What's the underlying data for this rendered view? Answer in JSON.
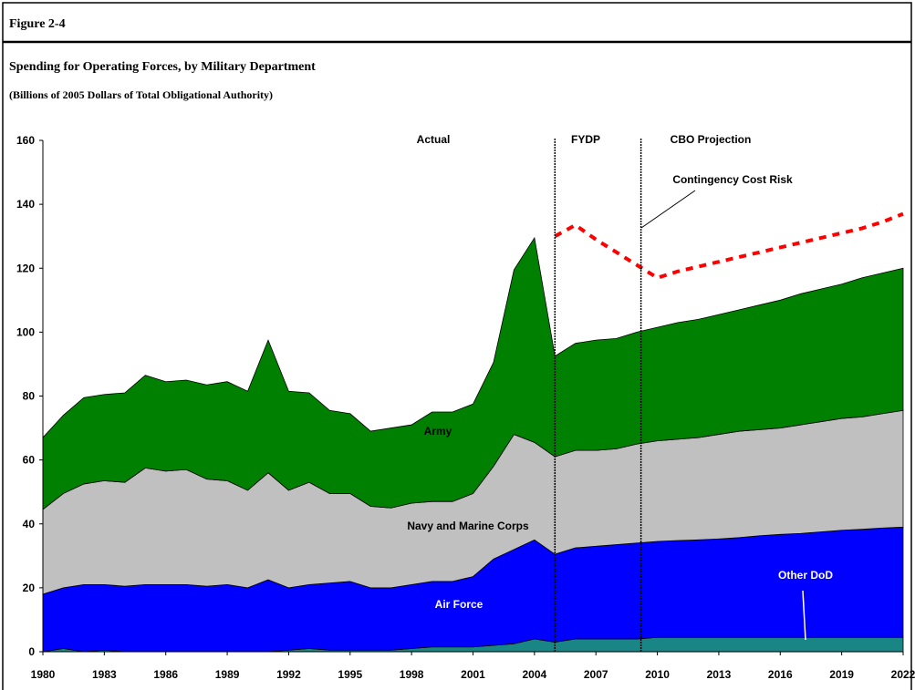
{
  "header": {
    "figure": "Figure 2-4"
  },
  "chart_data": {
    "type": "stacked_area",
    "title": "Spending for Operating Forces, by Military Department",
    "subtitle": "(Billions of 2005 Dollars of Total Obligational Authority)",
    "x": [
      1980,
      1981,
      1982,
      1983,
      1984,
      1985,
      1986,
      1987,
      1988,
      1989,
      1990,
      1991,
      1992,
      1993,
      1994,
      1995,
      1996,
      1997,
      1998,
      1999,
      2000,
      2001,
      2002,
      2003,
      2004,
      2005,
      2006,
      2007,
      2008,
      2009,
      2010,
      2011,
      2012,
      2013,
      2014,
      2015,
      2016,
      2017,
      2018,
      2019,
      2020,
      2021,
      2022
    ],
    "series": [
      {
        "name": "Other DoD",
        "color": "#1a8585",
        "label_color": "#ffffff",
        "values": [
          0,
          1,
          0,
          0.5,
          0,
          0,
          0,
          0,
          0,
          0,
          0,
          0,
          0.5,
          1,
          0.5,
          0.5,
          0.5,
          0.5,
          1,
          1.5,
          1.5,
          1.5,
          2,
          2.5,
          4,
          3,
          4,
          4,
          4,
          4,
          4.5,
          4.5,
          4.5,
          4.5,
          4.5,
          4.5,
          4.5,
          4.5,
          4.5,
          4.5,
          4.5,
          4.5,
          4.5
        ]
      },
      {
        "name": "Air Force",
        "color": "#0000ff",
        "label_color": "#ffffff",
        "values": [
          18,
          19,
          21,
          20.5,
          20.5,
          21,
          21,
          21,
          20.5,
          21,
          20,
          22.5,
          19.5,
          20,
          21,
          21.5,
          19.5,
          19.5,
          20,
          20.5,
          20.5,
          22,
          27,
          29.5,
          31,
          27.5,
          28.5,
          29,
          29.5,
          30,
          30,
          30.3,
          30.5,
          30.8,
          31.2,
          31.8,
          32.2,
          32.5,
          33,
          33.5,
          33.8,
          34.2,
          34.5
        ]
      },
      {
        "name": "Navy and Marine Corps",
        "color": "#c0c0c0",
        "label_color": "#000000",
        "values": [
          26.5,
          29.5,
          31.5,
          32.5,
          32.5,
          36.5,
          35.5,
          36,
          33.5,
          32.5,
          30.5,
          33.5,
          30.5,
          32,
          28,
          27.5,
          25.5,
          25,
          25.5,
          25,
          25,
          26,
          29,
          36,
          30.5,
          30.5,
          30.5,
          30,
          30,
          31,
          31.5,
          31.7,
          32,
          32.7,
          33.3,
          33.2,
          33.3,
          34,
          34.5,
          35,
          35.2,
          35.8,
          36.5
        ]
      },
      {
        "name": "Army",
        "color": "#008000",
        "label_color": "#000000",
        "values": [
          22.5,
          24.5,
          27,
          27,
          28,
          29,
          28,
          28,
          29.5,
          31,
          31,
          41.5,
          31,
          28,
          26,
          25,
          23.5,
          25,
          24.5,
          28,
          28,
          28,
          32.5,
          51.5,
          64,
          31.5,
          33.5,
          34.5,
          34.5,
          35,
          35.5,
          36.5,
          37,
          37.5,
          38,
          39,
          40,
          41,
          41.5,
          42,
          43.5,
          44,
          44.5
        ]
      }
    ],
    "lines": [
      {
        "name": "Contingency Cost Risk",
        "color": "#ff0000",
        "dashed": true,
        "x": [
          2005,
          2006,
          2007,
          2008,
          2009,
          2010,
          2011,
          2012,
          2013,
          2014,
          2015,
          2016,
          2017,
          2018,
          2019,
          2020,
          2021,
          2022
        ],
        "values": [
          130,
          133.5,
          129,
          125,
          121,
          117,
          119,
          120.5,
          122,
          123.5,
          125,
          126.5,
          128,
          129.5,
          131,
          132.5,
          134.5,
          137
        ]
      }
    ],
    "dividers": [
      2005,
      2009.2
    ],
    "periods": [
      "Actual",
      "FYDP",
      "CBO Projection"
    ],
    "xlim": [
      1980,
      2022
    ],
    "xticks": [
      1980,
      1983,
      1986,
      1989,
      1992,
      1995,
      1998,
      2001,
      2004,
      2007,
      2010,
      2013,
      2016,
      2019,
      2022
    ],
    "ylim": [
      0,
      160
    ],
    "yticks": [
      0,
      20,
      40,
      60,
      80,
      100,
      120,
      140,
      160
    ],
    "grid": false
  }
}
